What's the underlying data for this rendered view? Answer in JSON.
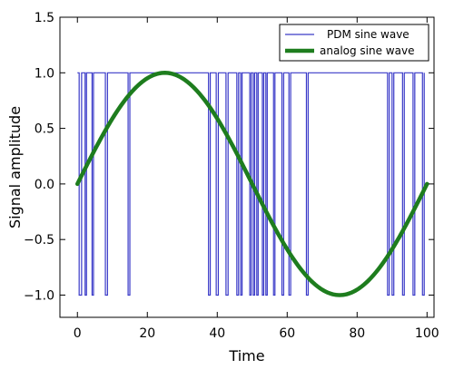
{
  "chart_data": {
    "type": "line",
    "title": "",
    "xlabel": "Time",
    "ylabel": "Signal amplitude",
    "xlim": [
      -5,
      102
    ],
    "ylim": [
      -1.2,
      1.5
    ],
    "xticks": [
      0,
      20,
      40,
      60,
      80,
      100
    ],
    "yticks": [
      -1.0,
      -0.5,
      0.0,
      0.5,
      1.0,
      1.5
    ],
    "xtick_labels": [
      "0",
      "20",
      "40",
      "60",
      "80",
      "100"
    ],
    "ytick_labels": [
      "−1.0",
      "−0.5",
      "0.0",
      "0.5",
      "1.0",
      "1.5"
    ],
    "grid": false,
    "legend_placement": "top-right",
    "series": [
      {
        "name": "PDM sine wave",
        "kind": "step",
        "color": "#3a3ac8",
        "transitions": [
          0.0,
          0.5,
          1.2,
          2.2,
          2.6,
          4.2,
          4.6,
          8.0,
          8.6,
          14.5,
          15.0,
          37.5,
          38.0,
          39.7,
          40.3,
          42.5,
          43.1,
          45.6,
          46.1,
          46.7,
          47.1,
          49.3,
          49.7,
          50.3,
          50.7,
          51.3,
          51.7,
          52.9,
          53.3,
          53.9,
          54.3,
          56.1,
          56.5,
          58.5,
          59.0,
          60.5,
          61.0,
          65.5,
          66.0,
          88.7,
          89.2,
          90.0,
          90.5,
          93.0,
          93.5,
          96.0,
          96.5,
          98.7,
          99.2
        ],
        "start_level": 1.0,
        "x_end": 99.2
      },
      {
        "name": "analog sine wave",
        "kind": "sine",
        "color": "#1e7d1e",
        "amplitude": 1.0,
        "period": 100,
        "x_range": [
          0,
          100
        ]
      }
    ]
  }
}
